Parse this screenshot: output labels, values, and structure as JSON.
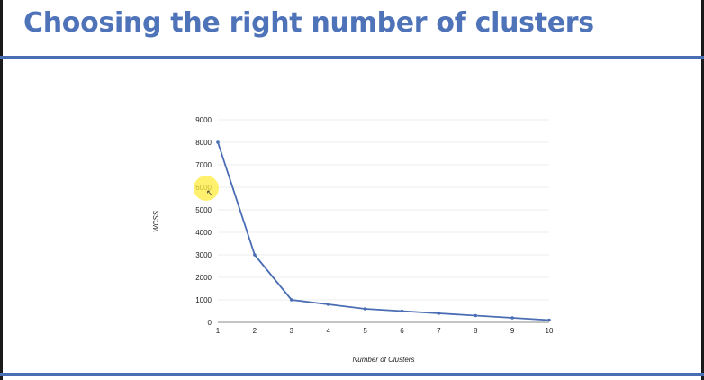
{
  "slide": {
    "title": "Choosing the right number of clusters",
    "colors": {
      "title": "#4f73b9",
      "rule": "#4a6db4",
      "line": "#4a6db4",
      "grid": "#e6e6e6"
    }
  },
  "chart_data": {
    "type": "line",
    "title": "",
    "xlabel": "Number of Clusters",
    "ylabel": "WCSS",
    "x": [
      1,
      2,
      3,
      4,
      5,
      6,
      7,
      8,
      9,
      10
    ],
    "xticks": [
      "1",
      "2",
      "3",
      "4",
      "5",
      "6",
      "7",
      "8",
      "9",
      "10"
    ],
    "yticks": [
      "0",
      "1000",
      "2000",
      "3000",
      "4000",
      "5000",
      "6000",
      "7000",
      "8000",
      "9000"
    ],
    "ylim": [
      0,
      9000
    ],
    "grid": true,
    "series": [
      {
        "values": [
          8000,
          3000,
          1000,
          800,
          600,
          500,
          400,
          300,
          200,
          100
        ]
      }
    ]
  }
}
